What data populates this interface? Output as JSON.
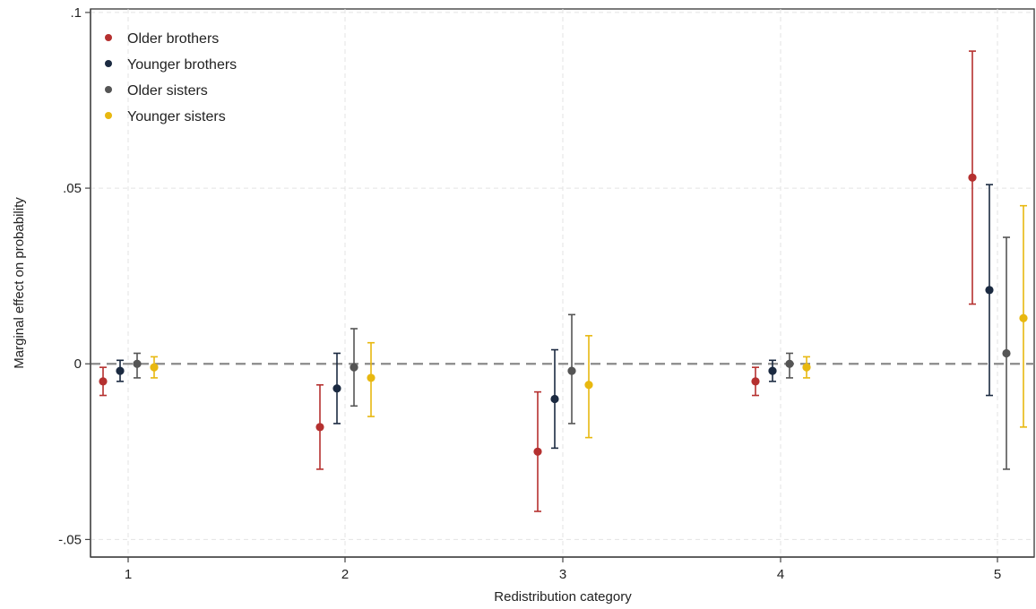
{
  "chart_data": {
    "type": "scatter",
    "subtype": "point-estimates-with-error-bars",
    "xlabel": "Redistribution category",
    "ylabel": "Marginal effect on probability",
    "categories": [
      "1",
      "2",
      "3",
      "4",
      "5"
    ],
    "ylim": [
      -0.055,
      0.101
    ],
    "yticks": [
      {
        "value": 0.1,
        "label": ".1"
      },
      {
        "value": 0.05,
        "label": ".05"
      },
      {
        "value": 0,
        "label": "0"
      },
      {
        "value": -0.05,
        "label": "-.05"
      }
    ],
    "reference_line": {
      "y": 0,
      "style": "dashed",
      "color": "#8a8a8a"
    },
    "grid": true,
    "legend_position": "top-left",
    "series": [
      {
        "name": "Older brothers",
        "color": "#b5302f",
        "points": [
          {
            "x": "1",
            "y": -0.005,
            "lo": -0.009,
            "hi": -0.001
          },
          {
            "x": "2",
            "y": -0.018,
            "lo": -0.03,
            "hi": -0.006
          },
          {
            "x": "3",
            "y": -0.025,
            "lo": -0.042,
            "hi": -0.008
          },
          {
            "x": "4",
            "y": -0.005,
            "lo": -0.009,
            "hi": -0.001
          },
          {
            "x": "5",
            "y": 0.053,
            "lo": 0.017,
            "hi": 0.089
          }
        ]
      },
      {
        "name": "Younger brothers",
        "color": "#1b2a41",
        "points": [
          {
            "x": "1",
            "y": -0.002,
            "lo": -0.005,
            "hi": 0.001
          },
          {
            "x": "2",
            "y": -0.007,
            "lo": -0.017,
            "hi": 0.003
          },
          {
            "x": "3",
            "y": -0.01,
            "lo": -0.024,
            "hi": 0.004
          },
          {
            "x": "4",
            "y": -0.002,
            "lo": -0.005,
            "hi": 0.001
          },
          {
            "x": "5",
            "y": 0.021,
            "lo": -0.009,
            "hi": 0.051
          }
        ]
      },
      {
        "name": "Older sisters",
        "color": "#555555",
        "points": [
          {
            "x": "1",
            "y": 0.0,
            "lo": -0.004,
            "hi": 0.003
          },
          {
            "x": "2",
            "y": -0.001,
            "lo": -0.012,
            "hi": 0.01
          },
          {
            "x": "3",
            "y": -0.002,
            "lo": -0.017,
            "hi": 0.014
          },
          {
            "x": "4",
            "y": 0.0,
            "lo": -0.004,
            "hi": 0.003
          },
          {
            "x": "5",
            "y": 0.003,
            "lo": -0.03,
            "hi": 0.036
          }
        ]
      },
      {
        "name": "Younger sisters",
        "color": "#e8b810",
        "points": [
          {
            "x": "1",
            "y": -0.001,
            "lo": -0.004,
            "hi": 0.002
          },
          {
            "x": "2",
            "y": -0.004,
            "lo": -0.015,
            "hi": 0.006
          },
          {
            "x": "3",
            "y": -0.006,
            "lo": -0.021,
            "hi": 0.008
          },
          {
            "x": "4",
            "y": -0.001,
            "lo": -0.004,
            "hi": 0.002
          },
          {
            "x": "5",
            "y": 0.013,
            "lo": -0.018,
            "hi": 0.045
          }
        ]
      }
    ]
  }
}
